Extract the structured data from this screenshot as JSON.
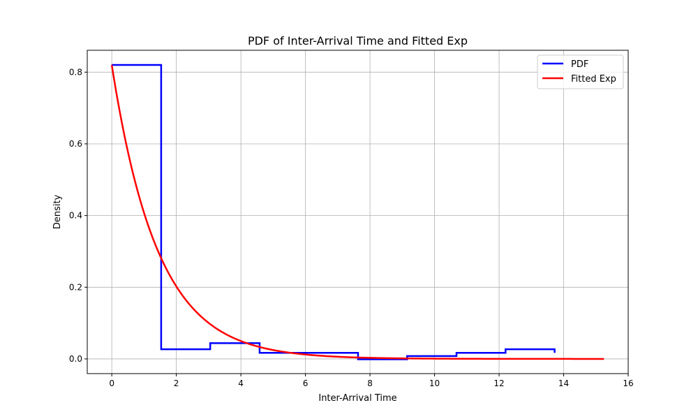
{
  "chart_data": {
    "type": "line",
    "title": "PDF of Inter-Arrival Time and Fitted Exp",
    "xlabel": "Inter-Arrival Time",
    "ylabel": "Density",
    "xlim": [
      -0.76,
      16
    ],
    "ylim": [
      -0.041,
      0.861
    ],
    "xticks": [
      0,
      2,
      4,
      6,
      8,
      10,
      12,
      14,
      16
    ],
    "xtick_labels": [
      "0",
      "2",
      "4",
      "6",
      "8",
      "10",
      "12",
      "14",
      "16"
    ],
    "yticks": [
      0.0,
      0.2,
      0.4,
      0.6,
      0.8
    ],
    "ytick_labels": [
      "0.0",
      "0.2",
      "0.4",
      "0.6",
      "0.8"
    ],
    "grid": true,
    "legend_position": "top-right",
    "series": [
      {
        "name": "PDF",
        "color": "#0000ff",
        "style": "step",
        "x": [
          0,
          1.53,
          3.05,
          4.58,
          6.1,
          7.63,
          9.15,
          10.68,
          12.2,
          13.72
        ],
        "values": [
          0.82,
          0.027,
          0.044,
          0.017,
          0.017,
          -0.001,
          0.008,
          0.017,
          0.027,
          0.017
        ]
      },
      {
        "name": "Fitted Exp",
        "color": "#ff0000",
        "style": "line",
        "function": "exponential",
        "amplitude": 0.82,
        "rate": 0.7,
        "x_range": [
          0,
          15.25
        ]
      }
    ]
  }
}
